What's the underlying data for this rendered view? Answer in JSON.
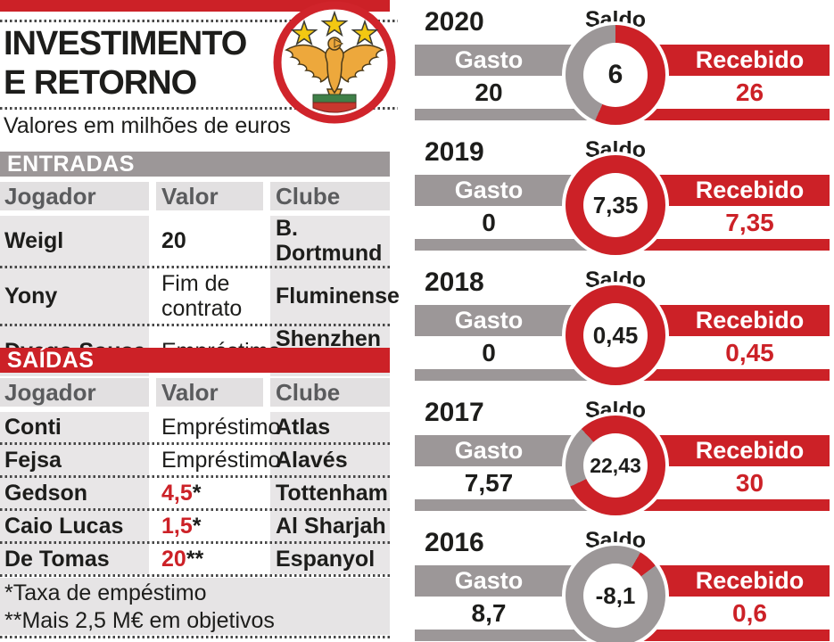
{
  "colors": {
    "red": "#cc2127",
    "gray": "#9c9798",
    "light_gray": "#e8e6e7",
    "header_strip": "#e2e0e1",
    "dark": "#1d1d1b",
    "white": "#ffffff"
  },
  "header": {
    "title_line1": "INVESTIMENTO",
    "title_line2": "E RETORNO",
    "subtitle": "Valores em milhões de euros",
    "logo": "benfica-crest"
  },
  "entradas": {
    "title": "ENTRADAS",
    "columns": [
      "Jogador",
      "Valor",
      "Clube"
    ],
    "rows": [
      {
        "jogador": "Weigl",
        "valor": "20",
        "valor_suffix": "",
        "valor_style": "bold",
        "clube": "B. Dortmund"
      },
      {
        "jogador": "Yony",
        "valor": "Fim de contrato",
        "valor_suffix": "",
        "valor_style": "plain",
        "clube": "Fluminense"
      },
      {
        "jogador": "Dyego Sousa",
        "valor": "Empréstimo",
        "valor_suffix": "",
        "valor_style": "plain",
        "clube": "Shenzhen FC"
      }
    ]
  },
  "saidas": {
    "title": "SAÍDAS",
    "columns": [
      "Jogador",
      "Valor",
      "Clube"
    ],
    "rows": [
      {
        "jogador": "Conti",
        "valor": "Empréstimo",
        "valor_suffix": "",
        "valor_style": "plain",
        "clube": "Atlas"
      },
      {
        "jogador": "Fejsa",
        "valor": "Empréstimo",
        "valor_suffix": "",
        "valor_style": "plain",
        "clube": "Alavés"
      },
      {
        "jogador": "Gedson",
        "valor": "4,5",
        "valor_suffix": "*",
        "valor_style": "red",
        "clube": "Tottenham"
      },
      {
        "jogador": "Caio Lucas",
        "valor": "1,5",
        "valor_suffix": "*",
        "valor_style": "red",
        "clube": "Al Sharjah"
      },
      {
        "jogador": "De Tomas",
        "valor": "20",
        "valor_suffix": "**",
        "valor_style": "red",
        "clube": "Espanyol"
      }
    ]
  },
  "footnotes": {
    "lines": [
      "*Taxa de empéstimo",
      "**Mais 2,5 M€ em objetivos"
    ]
  },
  "chart_data": {
    "type": "pie",
    "subtype": "donut-series",
    "title": "INVESTIMENTO E RETORNO",
    "unit": "milhões de euros",
    "legend": {
      "saldo": "Saldo",
      "gasto": "Gasto",
      "recebido": "Recebido"
    },
    "years": [
      {
        "year": "2020",
        "gasto": 20,
        "recebido": 26,
        "saldo": 6,
        "gasto_display": "20",
        "recebido_display": "26",
        "saldo_display": "6",
        "segments": [
          {
            "color": "red",
            "from": 0,
            "to": 204
          },
          {
            "color": "gray",
            "from": 204,
            "to": 360
          }
        ]
      },
      {
        "year": "2019",
        "gasto": 0,
        "recebido": 7.35,
        "saldo": 7.35,
        "gasto_display": "0",
        "recebido_display": "7,35",
        "saldo_display": "7,35",
        "segments": [
          {
            "color": "red",
            "from": 0,
            "to": 360
          }
        ]
      },
      {
        "year": "2018",
        "gasto": 0,
        "recebido": 0.45,
        "saldo": 0.45,
        "gasto_display": "0",
        "recebido_display": "0,45",
        "saldo_display": "0,45",
        "segments": [
          {
            "color": "red",
            "from": 0,
            "to": 360
          }
        ]
      },
      {
        "year": "2017",
        "gasto": 7.57,
        "recebido": 30,
        "saldo": 22.43,
        "gasto_display": "7,57",
        "recebido_display": "30",
        "saldo_display": "22,43",
        "segments": [
          {
            "color": "red",
            "from": 0,
            "to": 245
          },
          {
            "color": "gray",
            "from": 245,
            "to": 317
          },
          {
            "color": "red",
            "from": 317,
            "to": 360
          }
        ]
      },
      {
        "year": "2016",
        "gasto": 8.7,
        "recebido": 0.6,
        "saldo": -8.1,
        "gasto_display": "8,7",
        "recebido_display": "0,6",
        "saldo_display": "-8,1",
        "segments": [
          {
            "color": "gray",
            "from": 0,
            "to": 30
          },
          {
            "color": "red",
            "from": 30,
            "to": 53
          },
          {
            "color": "gray",
            "from": 53,
            "to": 360
          }
        ]
      }
    ]
  }
}
